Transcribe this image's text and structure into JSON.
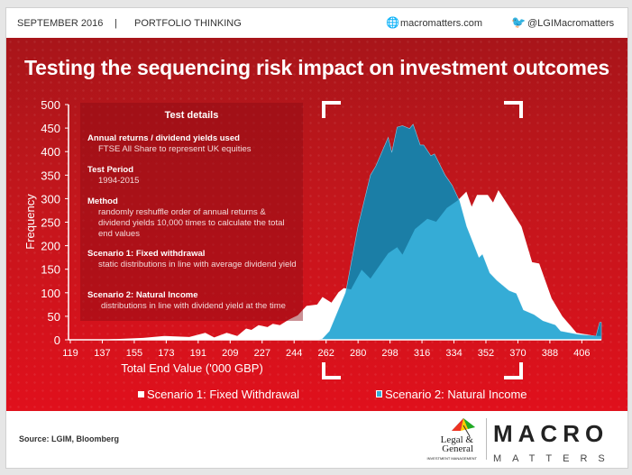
{
  "header": {
    "date": "SEPTEMBER  2016",
    "separator": "|",
    "section": "PORTFOLIO THINKING",
    "website": "macromatters.com",
    "twitter": "@LGIMacromatters"
  },
  "title": "Testing the sequencing risk impact on investment outcomes",
  "test_details": {
    "heading": "Test details",
    "items": [
      {
        "label": "Annual returns / dividend yields used",
        "value": "FTSE All Share to represent UK equities"
      },
      {
        "label": "Test Period",
        "value": "1994-2015"
      },
      {
        "label": "Method",
        "value": "randomly reshuffle order of annual returns & dividend yields 10,000 times to calculate the total end values"
      },
      {
        "label": "Scenario 1: Fixed withdrawal",
        "value": "static distributions in line with average dividend yield"
      },
      {
        "label": "Scenario 2: Natural Income",
        "value": "distributions in line with dividend yield at the time"
      }
    ]
  },
  "footer": {
    "source": "Source: LGIM,  Bloomberg",
    "lg_logo": "Legal & General",
    "lg_sub": "INVESTMENT MANAGEMENT",
    "mm_logo": "MACRO",
    "mm_sub": "MATTERS"
  },
  "colors": {
    "scenario1": "#ffffff",
    "scenario2": "#35acd6",
    "overlap_dark": "#1b7ea6",
    "red": "#c4161c"
  },
  "chart_data": {
    "type": "area",
    "title": "",
    "xlabel": "Total End Value ('000 GBP)",
    "ylabel": "Frequency",
    "xlim": [
      119,
      418
    ],
    "ylim": [
      0,
      500
    ],
    "xticks": [
      "119",
      "137",
      "155",
      "173",
      "191",
      "209",
      "227",
      "244",
      "262",
      "280",
      "298",
      "316",
      "334",
      "352",
      "370",
      "388",
      "406"
    ],
    "yticks": [
      "0",
      "50",
      "100",
      "150",
      "200",
      "250",
      "300",
      "350",
      "400",
      "450",
      "500"
    ],
    "legend_position": "bottom",
    "series": [
      {
        "name": "Scenario 1: Fixed Withdrawal",
        "points": [
          [
            119,
            0
          ],
          [
            140,
            1
          ],
          [
            160,
            4
          ],
          [
            172,
            8
          ],
          [
            186,
            6
          ],
          [
            195,
            15
          ],
          [
            200,
            5
          ],
          [
            207,
            15
          ],
          [
            213,
            8
          ],
          [
            218,
            24
          ],
          [
            221,
            21
          ],
          [
            225,
            31
          ],
          [
            230,
            27
          ],
          [
            233,
            34
          ],
          [
            237,
            31
          ],
          [
            242,
            43
          ],
          [
            247,
            52
          ],
          [
            252,
            72
          ],
          [
            258,
            75
          ],
          [
            261,
            91
          ],
          [
            266,
            79
          ],
          [
            270,
            101
          ],
          [
            273,
            110
          ],
          [
            277,
            107
          ],
          [
            283,
            149
          ],
          [
            288,
            130
          ],
          [
            292,
            152
          ],
          [
            298,
            184
          ],
          [
            303,
            197
          ],
          [
            306,
            181
          ],
          [
            313,
            235
          ],
          [
            320,
            257
          ],
          [
            325,
            251
          ],
          [
            331,
            280
          ],
          [
            337,
            296
          ],
          [
            342,
            315
          ],
          [
            345,
            283
          ],
          [
            348,
            308
          ],
          [
            354,
            308
          ],
          [
            357,
            292
          ],
          [
            360,
            318
          ],
          [
            366,
            283
          ],
          [
            373,
            241
          ],
          [
            379,
            165
          ],
          [
            383,
            162
          ],
          [
            390,
            88
          ],
          [
            396,
            50
          ],
          [
            404,
            15
          ],
          [
            415,
            8
          ],
          [
            418,
            8
          ]
        ]
      },
      {
        "name": "Scenario 2: Natural Income",
        "points": [
          [
            119,
            0
          ],
          [
            258,
            0
          ],
          [
            261,
            2
          ],
          [
            265,
            18
          ],
          [
            274,
            100
          ],
          [
            281,
            241
          ],
          [
            288,
            350
          ],
          [
            291,
            369
          ],
          [
            298,
            430
          ],
          [
            300,
            398
          ],
          [
            303,
            452
          ],
          [
            306,
            455
          ],
          [
            310,
            449
          ],
          [
            312,
            458
          ],
          [
            316,
            414
          ],
          [
            318,
            414
          ],
          [
            322,
            391
          ],
          [
            324,
            395
          ],
          [
            330,
            350
          ],
          [
            334,
            328
          ],
          [
            338,
            296
          ],
          [
            342,
            241
          ],
          [
            349,
            174
          ],
          [
            351,
            181
          ],
          [
            355,
            142
          ],
          [
            359,
            126
          ],
          [
            366,
            104
          ],
          [
            370,
            98
          ],
          [
            374,
            63
          ],
          [
            380,
            53
          ],
          [
            385,
            40
          ],
          [
            392,
            31
          ],
          [
            395,
            18
          ],
          [
            405,
            11
          ],
          [
            415,
            8
          ],
          [
            417,
            37
          ],
          [
            418,
            37
          ]
        ]
      }
    ]
  }
}
